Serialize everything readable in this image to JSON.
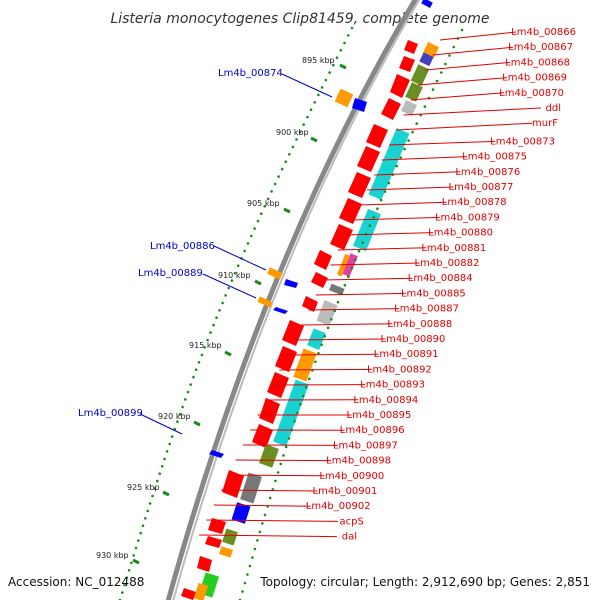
{
  "title": "Listeria monocytogenes Clip81459, complete genome",
  "footer": {
    "accession": "Accession: NC_012488",
    "summary": "Topology: circular; Length: 2,912,690 bp; Genes: 2,851"
  },
  "colors": {
    "cds": "#ff0000",
    "plus_strand": "#0000ff",
    "label_red": "#e00000",
    "label_blue": "#0000c8",
    "teal": "#19d2d2",
    "orange": "#ff9900",
    "olive": "#6b8e23",
    "gray": "#999999",
    "green_dots": "#1a8a1a",
    "backbone": "#777777"
  },
  "ticks": [
    "895 kbp",
    "900 kbp",
    "905 kbp",
    "910 kbp",
    "915 kbp",
    "920 kbp",
    "925 kbp",
    "930 kbp"
  ],
  "right_labels": [
    "Lm4b_00866",
    "Lm4b_00867",
    "Lm4b_00868",
    "Lm4b_00869",
    "Lm4b_00870",
    "ddl",
    "murF",
    "Lm4b_00873",
    "Lm4b_00875",
    "Lm4b_00876",
    "Lm4b_00877",
    "Lm4b_00878",
    "Lm4b_00879",
    "Lm4b_00880",
    "Lm4b_00881",
    "Lm4b_00882",
    "Lm4b_00884",
    "Lm4b_00885",
    "Lm4b_00887",
    "Lm4b_00888",
    "Lm4b_00890",
    "Lm4b_00891",
    "Lm4b_00892",
    "Lm4b_00893",
    "Lm4b_00894",
    "Lm4b_00895",
    "Lm4b_00896",
    "Lm4b_00897",
    "Lm4b_00898",
    "Lm4b_00900",
    "Lm4b_00901",
    "Lm4b_00902",
    "acpS",
    "dal"
  ],
  "left_labels": [
    "Lm4b_00874",
    "Lm4b_00886",
    "Lm4b_00889",
    "Lm4b_00899"
  ]
}
